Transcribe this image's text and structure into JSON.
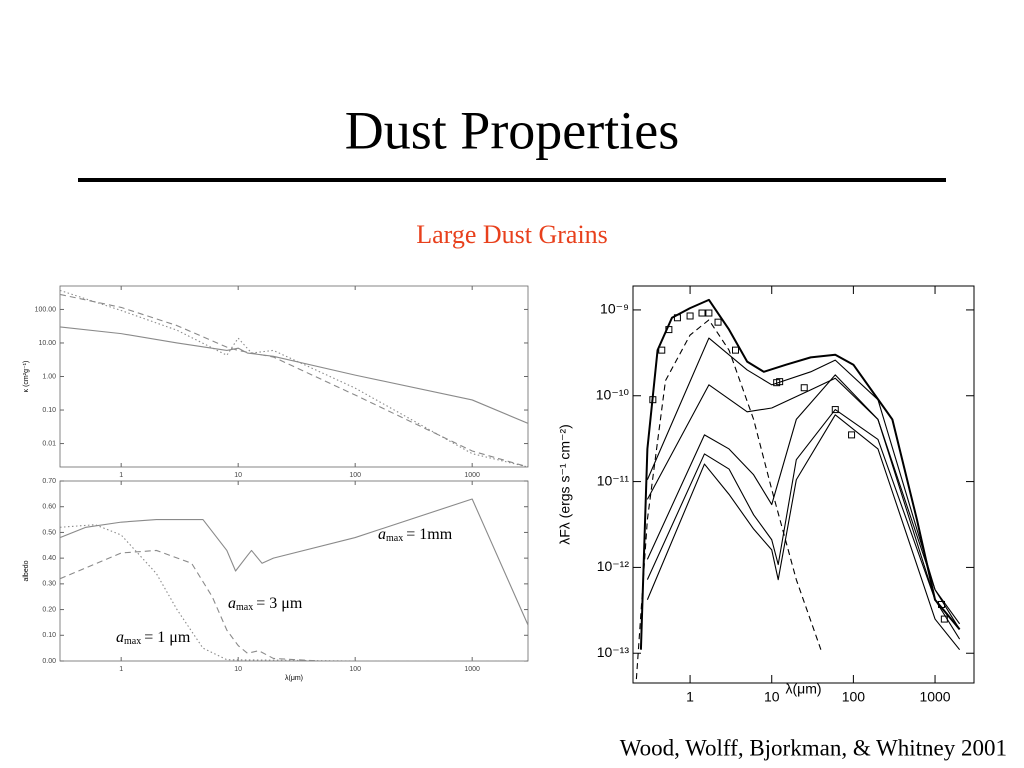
{
  "slide": {
    "title": "Dust Properties",
    "subtitle": "Large Dust Grains",
    "citation": "Wood, Wolff, Bjorkman, & Whitney 2001"
  },
  "chart_data": [
    {
      "type": "line",
      "ylabel": "κ (cm²g⁻¹)",
      "xlog": true,
      "ylog": true,
      "xlim": [
        0.3,
        3000
      ],
      "ylim": [
        0.002,
        500
      ],
      "xticks": [
        1,
        10,
        100,
        1000
      ],
      "yticks": [
        {
          "value": 0.01,
          "label": "0.01"
        },
        {
          "value": 0.1,
          "label": "0.10"
        },
        {
          "value": 1,
          "label": "1.00"
        },
        {
          "value": 10,
          "label": "10.00"
        },
        {
          "value": 100,
          "label": "100.00"
        }
      ],
      "color": "#8a8a8a",
      "series": [
        {
          "style": "solid",
          "x": [
            0.3,
            1,
            3,
            8,
            10,
            12,
            20,
            100,
            1000,
            3000
          ],
          "values": [
            30,
            19,
            10,
            6,
            7,
            5,
            4,
            1.1,
            0.2,
            0.04
          ]
        },
        {
          "style": "dashed",
          "x": [
            0.3,
            1,
            3,
            8,
            10,
            20,
            100,
            1000,
            3000
          ],
          "values": [
            280,
            115,
            33,
            7.5,
            6,
            3.8,
            0.28,
            0.006,
            0.002
          ]
        },
        {
          "style": "dotted",
          "x": [
            0.3,
            1,
            3,
            8,
            10,
            13,
            20,
            100,
            1000,
            3000
          ],
          "values": [
            370,
            93,
            24,
            4.3,
            14,
            5,
            6,
            0.45,
            0.005,
            0.002
          ]
        }
      ]
    },
    {
      "type": "line",
      "xlabel": "λ(μm)",
      "ylabel": "albedo",
      "xlog": true,
      "ylog": false,
      "xlim": [
        0.3,
        3000
      ],
      "ylim": [
        0,
        0.7
      ],
      "xticks": [
        1,
        10,
        100,
        1000
      ],
      "yticks": [
        {
          "value": 0,
          "label": "0.00"
        },
        {
          "value": 0.1,
          "label": "0.10"
        },
        {
          "value": 0.2,
          "label": "0.20"
        },
        {
          "value": 0.3,
          "label": "0.30"
        },
        {
          "value": 0.4,
          "label": "0.40"
        },
        {
          "value": 0.5,
          "label": "0.50"
        },
        {
          "value": 0.6,
          "label": "0.60"
        },
        {
          "value": 0.7,
          "label": "0.70"
        }
      ],
      "color": "#8a8a8a",
      "series": [
        {
          "style": "solid",
          "x": [
            0.3,
            0.5,
            1,
            2,
            5,
            8,
            9.5,
            12,
            13,
            16,
            20,
            100,
            1000,
            3000
          ],
          "values": [
            0.48,
            0.52,
            0.54,
            0.55,
            0.55,
            0.43,
            0.35,
            0.41,
            0.43,
            0.38,
            0.4,
            0.48,
            0.63,
            0.14
          ]
        },
        {
          "style": "dashed",
          "x": [
            0.3,
            1,
            2,
            4,
            6,
            8,
            10,
            12,
            15,
            20,
            50,
            3000
          ],
          "values": [
            0.32,
            0.42,
            0.43,
            0.38,
            0.25,
            0.12,
            0.06,
            0.03,
            0.04,
            0.01,
            0,
            0
          ]
        },
        {
          "style": "dotted",
          "x": [
            0.3,
            0.6,
            1,
            2,
            3,
            5,
            8,
            100,
            3000
          ],
          "values": [
            0.52,
            0.53,
            0.49,
            0.34,
            0.2,
            0.05,
            0.005,
            0,
            0
          ]
        }
      ],
      "annotations": [
        {
          "symbol": "a",
          "subscript": "max",
          "text": "= 1mm"
        },
        {
          "symbol": "a",
          "subscript": "max",
          "text": "= 3 μm"
        },
        {
          "symbol": "a",
          "subscript": "max",
          "text": "= 1 μm"
        }
      ]
    },
    {
      "type": "line",
      "xlabel": "λ(μm)",
      "ylabel": "λFλ (ergs s⁻¹ cm⁻²)",
      "xlog": true,
      "ylog": true,
      "xlim": [
        0.2,
        3000
      ],
      "ylim": [
        4.5e-14,
        1.9e-09
      ],
      "xticks": [
        1,
        10,
        100,
        1000
      ],
      "yticks": [
        {
          "value": 1e-13,
          "label": "10⁻¹³"
        },
        {
          "value": 1e-12,
          "label": "10⁻¹²"
        },
        {
          "value": 1e-11,
          "label": "10⁻¹¹"
        },
        {
          "value": 1e-10,
          "label": "10⁻¹⁰"
        },
        {
          "value": 1e-09,
          "label": "10⁻⁹"
        }
      ],
      "color": "#000000",
      "series": [
        {
          "style": "solid",
          "x": [
            0.25,
            0.3,
            0.4,
            0.6,
            1,
            1.7,
            3,
            5,
            8,
            15,
            30,
            60,
            100,
            300,
            600,
            1000,
            2000
          ],
          "values": [
            1.1e-13,
            2.4e-11,
            3.4e-10,
            8.1e-10,
            1.05e-09,
            1.31e-09,
            5.9e-10,
            2.5e-10,
            1.9e-10,
            2.3e-10,
            2.8e-10,
            3e-10,
            2.3e-10,
            5.3e-11,
            3.6e-12,
            4.2e-13,
            1.9e-13
          ]
        },
        {
          "style": "solid",
          "x": [
            0.3,
            1.7,
            5,
            10,
            30,
            60,
            200,
            1000,
            2000
          ],
          "values": [
            6.2e-12,
            1.34e-10,
            6.5e-11,
            7.2e-11,
            1.17e-10,
            1.6e-10,
            5.3e-11,
            5.5e-13,
            1.9e-13
          ]
        },
        {
          "style": "solid",
          "x": [
            0.3,
            1.7,
            5,
            10,
            30,
            60,
            200,
            1000,
            2000
          ],
          "values": [
            1.05e-11,
            4.7e-10,
            2e-10,
            1.34e-10,
            1.9e-10,
            2.6e-10,
            9e-11,
            5.5e-13,
            2.2e-13
          ]
        },
        {
          "style": "solid",
          "x": [
            0.3,
            1.5,
            3,
            6,
            10,
            20,
            60,
            200,
            1000,
            2000
          ],
          "values": [
            1.24e-12,
            3.5e-11,
            2.4e-11,
            1.2e-11,
            5.4e-12,
            5.3e-11,
            1.75e-10,
            5.3e-11,
            4.2e-13,
            1.9e-13
          ]
        },
        {
          "style": "solid",
          "x": [
            0.3,
            1.5,
            3,
            6,
            10,
            12,
            20,
            60,
            200,
            1000,
            2000
          ],
          "values": [
            7.2e-13,
            2.1e-11,
            1.4e-11,
            4.1e-12,
            2.1e-12,
            1.08e-12,
            1.8e-11,
            6.9e-11,
            3.1e-11,
            4.2e-13,
            1.46e-13
          ]
        },
        {
          "style": "solid",
          "x": [
            0.3,
            1.5,
            3,
            6,
            10,
            12,
            20,
            60,
            200,
            1000,
            2000
          ],
          "values": [
            4.2e-13,
            1.6e-11,
            7.1e-12,
            2.8e-12,
            1.6e-12,
            7.2e-13,
            1.05e-11,
            6e-11,
            2.4e-11,
            2.5e-13,
            1.1e-13
          ]
        },
        {
          "style": "dashed",
          "x": [
            0.22,
            0.3,
            0.5,
            1,
            1.7,
            3,
            6,
            10,
            20,
            40
          ],
          "values": [
            5e-14,
            3.6e-12,
            1.5e-10,
            5.1e-10,
            7.65e-10,
            3.4e-10,
            5.3e-11,
            8.1e-12,
            7.2e-13,
            1.1e-13
          ]
        },
        {
          "style": "markers",
          "x": [
            0.35,
            0.45,
            0.55,
            0.7,
            1,
            1.4,
            1.7,
            2.2,
            3.6,
            11.5,
            12.5,
            25,
            60,
            95,
            1200,
            1300
          ],
          "values": [
            9e-11,
            3.4e-10,
            5.9e-10,
            8.1e-10,
            8.5e-10,
            9.2e-10,
            9.2e-10,
            7.2e-10,
            3.4e-10,
            1.42e-10,
            1.46e-10,
            1.24e-10,
            6.9e-11,
            3.5e-11,
            3.7e-13,
            2.5e-13
          ]
        }
      ]
    }
  ]
}
